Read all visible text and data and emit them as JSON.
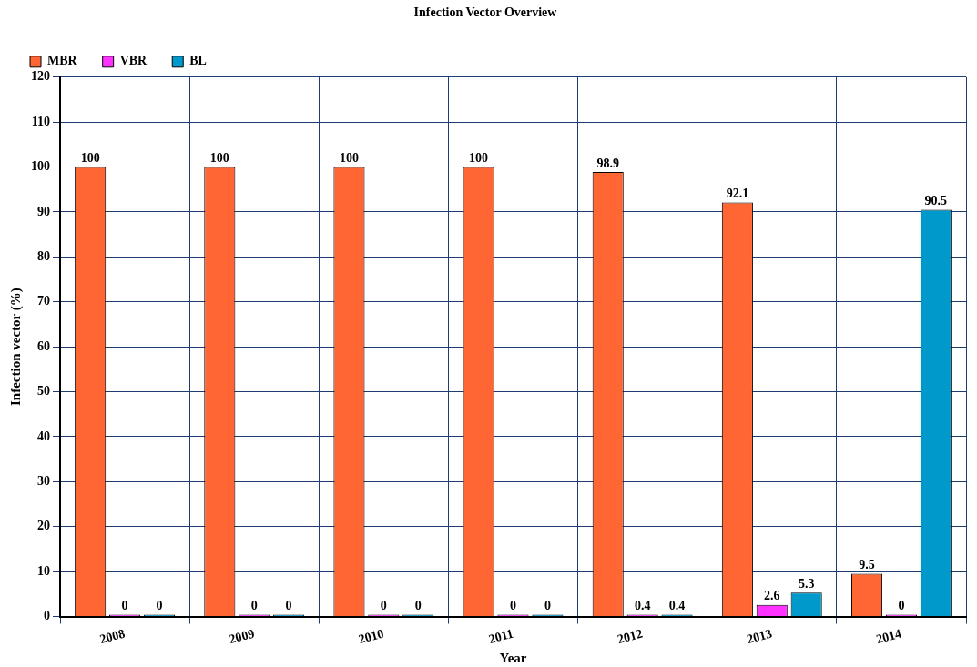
{
  "chart_data": {
    "type": "bar",
    "title": "Infection Vector Overview",
    "xlabel": "Year",
    "ylabel": "Infection vector (%)",
    "categories": [
      "2008",
      "2009",
      "2010",
      "2011",
      "2012",
      "2013",
      "2014"
    ],
    "series": [
      {
        "name": "MBR",
        "color": "#ff6633",
        "values": [
          100,
          100,
          100,
          100,
          98.9,
          92.1,
          9.5
        ]
      },
      {
        "name": "VBR",
        "color": "#ff33ff",
        "values": [
          0,
          0,
          0,
          0,
          0.4,
          2.6,
          0
        ]
      },
      {
        "name": "BL",
        "color": "#0099cc",
        "values": [
          0,
          0,
          0,
          0,
          0.4,
          5.3,
          90.5
        ]
      }
    ],
    "ylim": [
      0,
      120
    ],
    "yticks": [
      0,
      10,
      20,
      30,
      40,
      50,
      60,
      70,
      80,
      90,
      100,
      110,
      120
    ],
    "grid": true,
    "legend": "top left",
    "data_labels": true
  }
}
